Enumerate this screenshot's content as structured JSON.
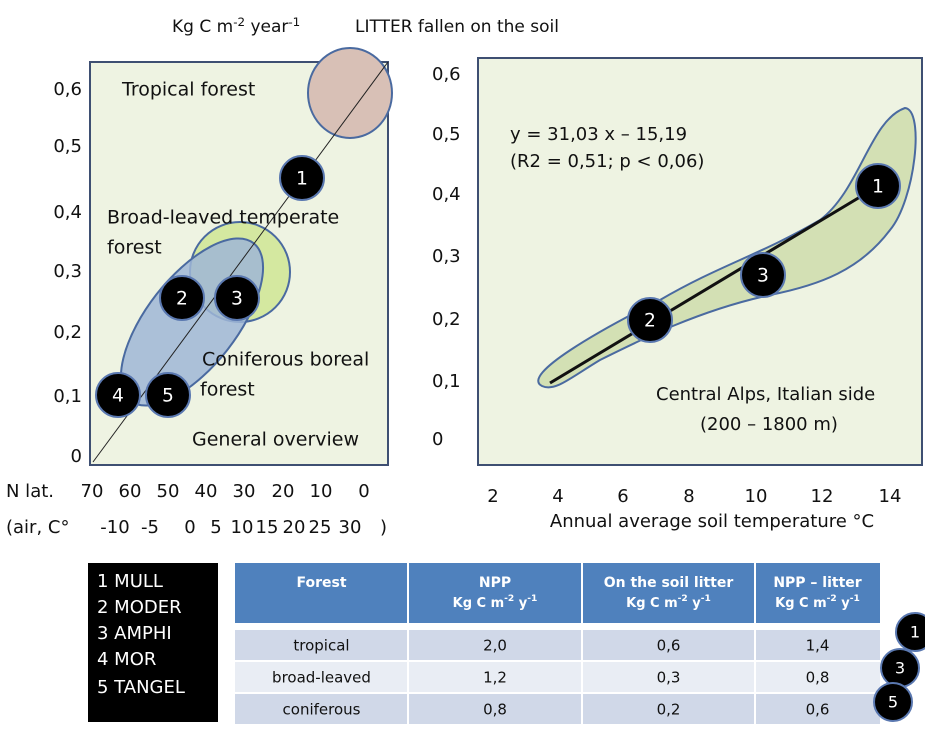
{
  "header": {
    "unit": {
      "base": "Kg C m",
      "exp1": "-2",
      "mid": " year",
      "exp2": "-1"
    },
    "title": "LITTER fallen on the soil"
  },
  "left_panel": {
    "yticks": [
      "0,6",
      "0,5",
      "0,4",
      "0,3",
      "0,2",
      "0,1",
      "0"
    ],
    "labels": {
      "tropical": "Tropical forest",
      "broad1": "Broad-leaved temperate",
      "broad2": "forest",
      "conif1": "Coniferous boreal",
      "conif2": "forest",
      "overview": "General overview"
    },
    "markers": [
      "1",
      "2",
      "3",
      "4",
      "5"
    ],
    "lat_label": "N lat.",
    "lat_ticks": [
      "70",
      "60",
      "50",
      "40",
      "30",
      "20",
      "10",
      "0"
    ],
    "air_prefix": "(air, C°",
    "air_ticks": [
      "-10",
      "-5",
      "0",
      "5",
      "10",
      "15",
      "20",
      "25",
      "30"
    ],
    "air_suffix": ")"
  },
  "right_panel": {
    "yticks": [
      "0,6",
      "0,5",
      "0,4",
      "0,3",
      "0,2",
      "0,1",
      "0"
    ],
    "xticks": [
      "2",
      "4",
      "6",
      "8",
      "10",
      "12",
      "14"
    ],
    "xlabel": "Annual average soil temperature °C",
    "equation": "y = 31,03 x – 15,19",
    "stats": "(R2 = 0,51; p < 0,06)",
    "site": "Central Alps, Italian side",
    "altitude": "(200 – 1800 m)",
    "markers": [
      "1",
      "3",
      "2"
    ]
  },
  "legend": [
    "1 MULL",
    "2 MODER",
    "3 AMPHI",
    "4 MOR",
    "5 TANGEL"
  ],
  "table": {
    "header": [
      {
        "main": "Forest"
      },
      {
        "main": "NPP",
        "unit": {
          "base": "Kg C m",
          "exp1": "-2",
          "mid": " y",
          "exp2": "-1"
        }
      },
      {
        "main": "On the soil litter",
        "unit": {
          "base": "Kg C m",
          "exp1": "-2",
          "mid": " y",
          "exp2": "-1"
        }
      },
      {
        "main": "NPP – litter",
        "unit": {
          "base": "Kg C m",
          "exp1": "-2",
          "mid": " y",
          "exp2": "-1"
        }
      }
    ],
    "rows": [
      [
        "tropical",
        "2,0",
        "0,6",
        "1,4"
      ],
      [
        "broad-leaved",
        "1,2",
        "0,3",
        "0,8"
      ],
      [
        "coniferous",
        "0,8",
        "0,2",
        "0,6"
      ]
    ],
    "markers": [
      "1",
      "3",
      "5"
    ]
  }
}
